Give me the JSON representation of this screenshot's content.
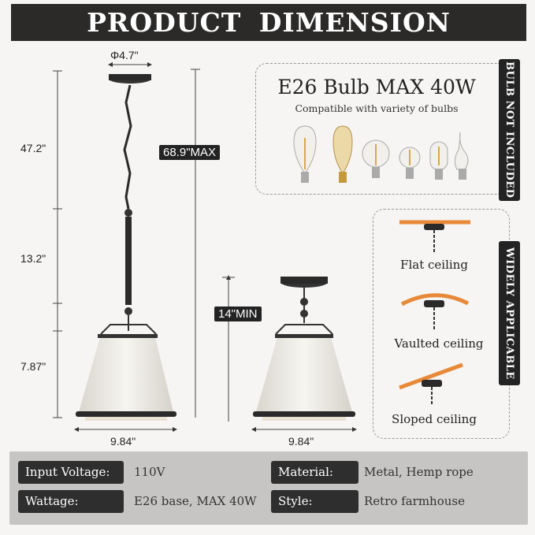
{
  "title": "PRODUCT DIMENSION",
  "dimensions": {
    "canopy_diameter": "Φ4.7\"",
    "chain_length": "47.2\"",
    "rod_length": "13.2\"",
    "shade_height": "7.87\"",
    "max_height": "68.9\"MAX",
    "min_height": "14\"MIN",
    "shade_width_left": "9.84\"",
    "shade_width_right": "9.84\""
  },
  "bulb_panel": {
    "heading": "E26 Bulb MAX 40W",
    "subheading": "Compatible with variety of bulbs",
    "tab": "BULB NOT INCLUDED",
    "bulb_icons": [
      "st64-bulb-icon",
      "st64-vintage-bulb-icon",
      "g25-globe-bulb-icon",
      "a19-bulb-icon",
      "t14-bulb-icon",
      "candle-flame-bulb-icon"
    ]
  },
  "ceiling_panel": {
    "tab": "WIDELY APPLICABLE",
    "items": [
      "Flat ceiling",
      "Vaulted ceiling",
      "Sloped ceiling"
    ],
    "ceiling_color": "#e8893a"
  },
  "specs": [
    {
      "label": "Input Voltage:",
      "value": "110V"
    },
    {
      "label": "Material:",
      "value": "Metal, Hemp rope"
    },
    {
      "label": "Wattage:",
      "value": "E26 base, MAX 40W"
    },
    {
      "label": "Style:",
      "value": "Retro farmhouse"
    }
  ]
}
